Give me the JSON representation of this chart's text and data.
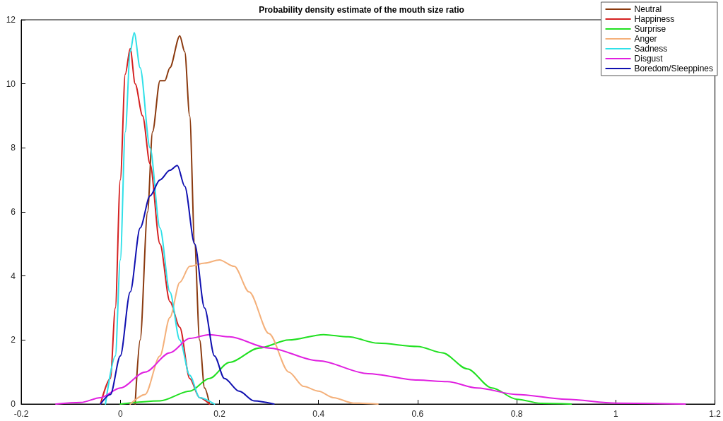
{
  "chart_data": {
    "type": "line",
    "title": "Probability density estimate of the mouth size ratio",
    "xlim": [
      -0.2,
      1.2
    ],
    "xticks": [
      -0.2,
      0,
      0.2,
      0.4,
      0.6,
      0.8,
      1,
      1.2
    ],
    "ylim": [
      0,
      12
    ],
    "yticks": [
      0,
      2,
      4,
      6,
      8,
      10,
      12
    ],
    "grid": false,
    "legend": "top right",
    "marker": "none",
    "line_style": "solid",
    "series": [
      {
        "name": "Neutral",
        "color": "#8b3a0f",
        "x": [
          0.03,
          0.04,
          0.055,
          0.065,
          0.08,
          0.09,
          0.1,
          0.12,
          0.13,
          0.14,
          0.15,
          0.16,
          0.17,
          0.18
        ],
        "values": [
          0,
          2,
          6,
          8.5,
          10.1,
          10.1,
          10.5,
          11.5,
          11,
          9,
          5,
          2,
          0.5,
          0
        ]
      },
      {
        "name": "Happiness",
        "color": "#d42020",
        "x": [
          -0.04,
          -0.02,
          -0.01,
          0,
          0.01,
          0.02,
          0.03,
          0.045,
          0.06,
          0.08,
          0.1,
          0.12,
          0.14,
          0.16,
          0.18
        ],
        "values": [
          0,
          0.8,
          3,
          7,
          10.3,
          11.1,
          10,
          9,
          7.5,
          5,
          3.2,
          2.4,
          0.8,
          0.2,
          0
        ]
      },
      {
        "name": "Surprise",
        "color": "#20e020",
        "x": [
          0,
          0.08,
          0.14,
          0.18,
          0.22,
          0.28,
          0.34,
          0.41,
          0.46,
          0.52,
          0.6,
          0.65,
          0.7,
          0.75,
          0.8,
          0.85,
          0.91
        ],
        "values": [
          0,
          0.1,
          0.4,
          0.8,
          1.3,
          1.75,
          2,
          2.17,
          2.1,
          1.9,
          1.8,
          1.6,
          1.1,
          0.5,
          0.15,
          0.02,
          0
        ]
      },
      {
        "name": "Anger",
        "color": "#f4b07a",
        "x": [
          0.02,
          0.05,
          0.08,
          0.1,
          0.12,
          0.14,
          0.17,
          0.2,
          0.23,
          0.26,
          0.3,
          0.34,
          0.37,
          0.4,
          0.43,
          0.47,
          0.52
        ],
        "values": [
          0,
          0.3,
          1.5,
          2.7,
          3.8,
          4.3,
          4.4,
          4.5,
          4.3,
          3.5,
          2.2,
          1,
          0.55,
          0.4,
          0.2,
          0.03,
          0
        ]
      },
      {
        "name": "Sadness",
        "color": "#30e0e8",
        "x": [
          -0.03,
          -0.01,
          0,
          0.01,
          0.02,
          0.028,
          0.04,
          0.06,
          0.08,
          0.1,
          0.12,
          0.14,
          0.16,
          0.19
        ],
        "values": [
          0,
          1.5,
          4.5,
          8.5,
          11,
          11.6,
          10.5,
          8,
          5.5,
          3.5,
          2,
          0.9,
          0.2,
          0
        ]
      },
      {
        "name": "Disgust",
        "color": "#e020e0",
        "x": [
          -0.13,
          -0.08,
          -0.04,
          0,
          0.05,
          0.1,
          0.14,
          0.18,
          0.22,
          0.3,
          0.4,
          0.5,
          0.6,
          0.66,
          0.72,
          0.8,
          0.9,
          1,
          1.14
        ],
        "values": [
          0,
          0.05,
          0.2,
          0.5,
          1,
          1.6,
          2.05,
          2.17,
          2.1,
          1.75,
          1.35,
          0.95,
          0.75,
          0.7,
          0.5,
          0.3,
          0.15,
          0.03,
          0
        ]
      },
      {
        "name": "Boredom/Sleeppines",
        "color": "#1010b0",
        "x": [
          -0.04,
          -0.02,
          0,
          0.02,
          0.04,
          0.06,
          0.08,
          0.1,
          0.115,
          0.13,
          0.15,
          0.17,
          0.19,
          0.21,
          0.24,
          0.27,
          0.31
        ],
        "values": [
          0,
          0.3,
          1.5,
          3.5,
          5.5,
          6.5,
          7,
          7.3,
          7.45,
          6.8,
          5,
          3,
          1.5,
          0.8,
          0.4,
          0.1,
          0
        ]
      }
    ]
  }
}
